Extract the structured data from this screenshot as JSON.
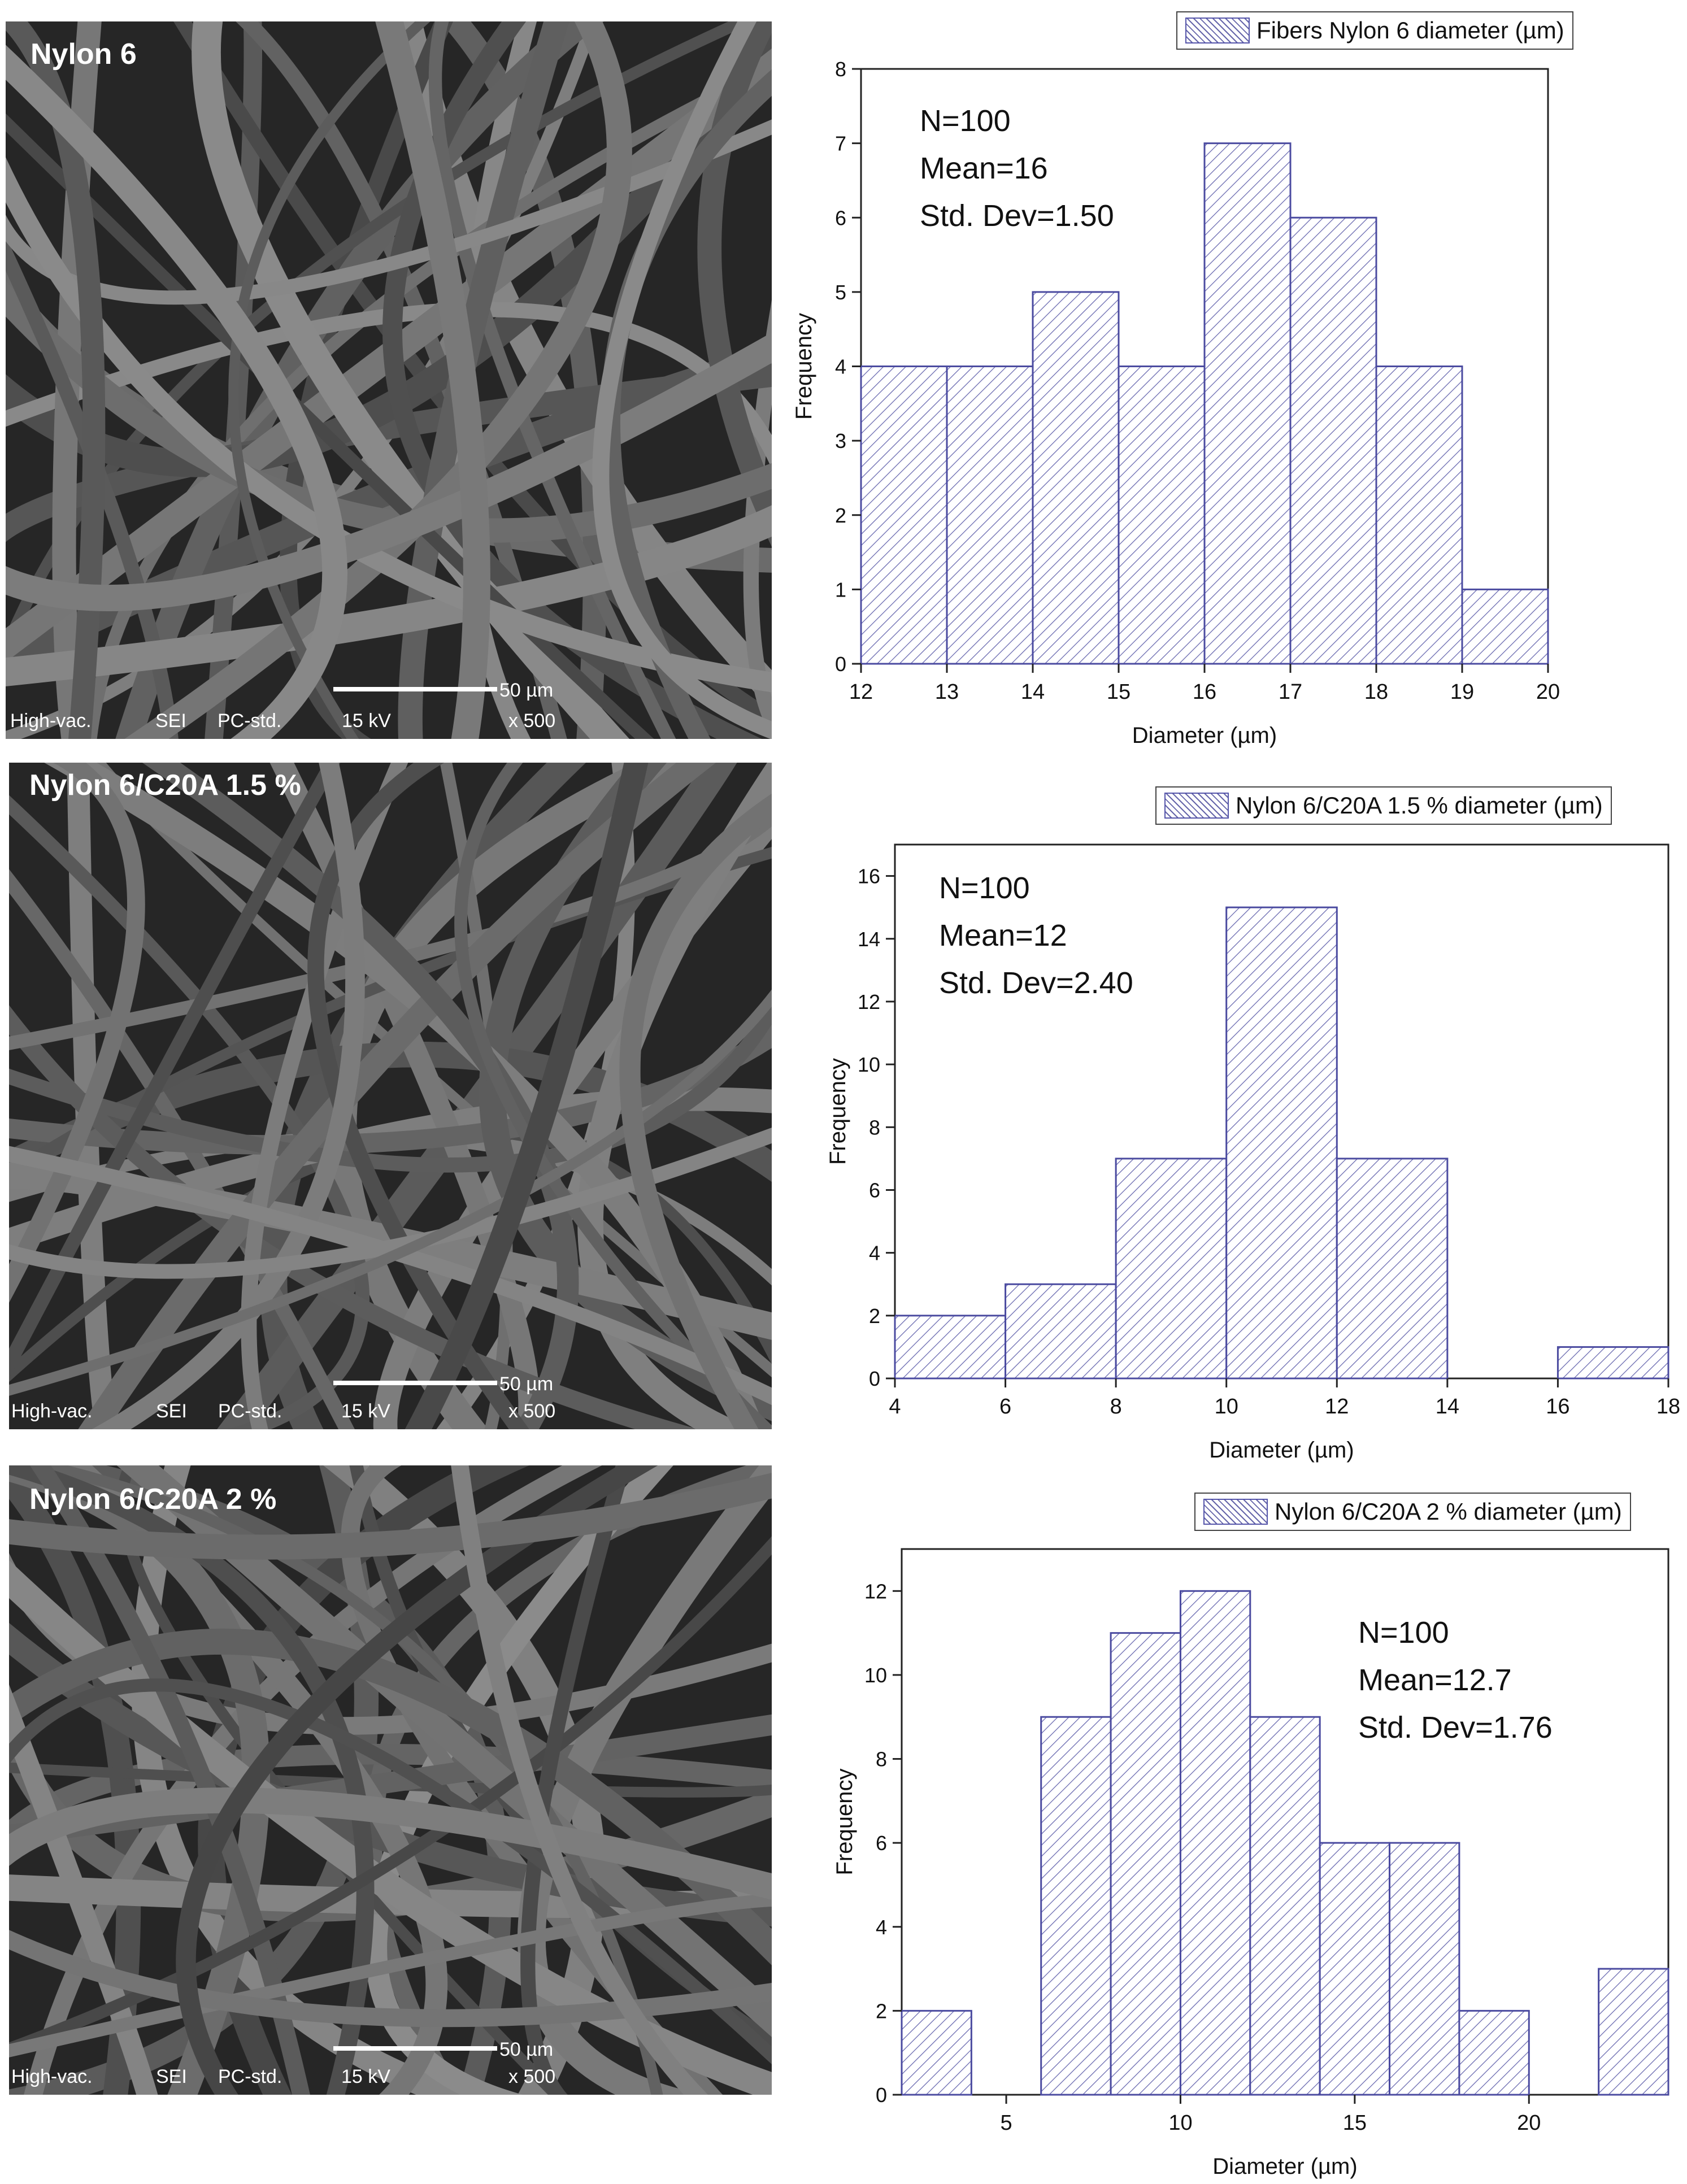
{
  "sem_panels": [
    {
      "title": "Nylon 6",
      "footer": [
        "High-vac.",
        "SEI",
        "PC-std.",
        "15 kV",
        "x 500"
      ],
      "scale_label": "50 µm"
    },
    {
      "title": "Nylon 6/C20A 1.5 %",
      "footer": [
        "High-vac.",
        "SEI",
        "PC-std.",
        "15 kV",
        "x 500"
      ],
      "scale_label": "50 µm"
    },
    {
      "title": "Nylon 6/C20A 2 %",
      "footer": [
        "High-vac.",
        "SEI",
        "PC-std.",
        "15 kV",
        "x 500"
      ],
      "scale_label": "50 µm"
    }
  ],
  "colors": {
    "bar_stroke": "#4b4ba0",
    "hatch": "#6a6ab0",
    "axis": "#222222"
  },
  "chart_data": [
    {
      "type": "bar",
      "legend": "Fibers Nylon 6 diameter (µm)",
      "stats": [
        "N=100",
        "Mean=16",
        "Std. Dev=1.50"
      ],
      "xlabel": "Diameter (µm)",
      "ylabel": "Frequency",
      "xlim": [
        12,
        20
      ],
      "ylim": [
        0,
        8
      ],
      "xticks": [
        12,
        13,
        14,
        15,
        16,
        17,
        18,
        19,
        20
      ],
      "yticks": [
        0,
        1,
        2,
        3,
        4,
        5,
        6,
        7,
        8
      ],
      "bins": [
        {
          "from": 12,
          "to": 13,
          "value": 4
        },
        {
          "from": 13,
          "to": 14,
          "value": 4
        },
        {
          "from": 14,
          "to": 15,
          "value": 5
        },
        {
          "from": 15,
          "to": 16,
          "value": 4
        },
        {
          "from": 16,
          "to": 17,
          "value": 7
        },
        {
          "from": 17,
          "to": 18,
          "value": 6
        },
        {
          "from": 18,
          "to": 19,
          "value": 4
        },
        {
          "from": 19,
          "to": 20,
          "value": 1
        }
      ]
    },
    {
      "type": "bar",
      "legend": "Nylon 6/C20A 1.5 % diameter (µm)",
      "stats": [
        "N=100",
        "Mean=12",
        "Std. Dev=2.40"
      ],
      "xlabel": "Diameter (µm)",
      "ylabel": "Frequency",
      "xlim": [
        4,
        18
      ],
      "ylim": [
        0,
        17
      ],
      "xticks": [
        4,
        6,
        8,
        10,
        12,
        14,
        16,
        18
      ],
      "yticks": [
        0,
        2,
        4,
        6,
        8,
        10,
        12,
        14,
        16
      ],
      "bins": [
        {
          "from": 4,
          "to": 6,
          "value": 2
        },
        {
          "from": 6,
          "to": 8,
          "value": 3
        },
        {
          "from": 8,
          "to": 10,
          "value": 7
        },
        {
          "from": 10,
          "to": 12,
          "value": 15
        },
        {
          "from": 12,
          "to": 14,
          "value": 7
        },
        {
          "from": 14,
          "to": 16,
          "value": 0
        },
        {
          "from": 16,
          "to": 18,
          "value": 1
        }
      ]
    },
    {
      "type": "bar",
      "legend": "Nylon 6/C20A 2 % diameter (µm)",
      "stats": [
        "N=100",
        "Mean=12.7",
        "Std. Dev=1.76"
      ],
      "xlabel": "Diameter (µm)",
      "ylabel": "Frequency",
      "xlim": [
        2,
        24
      ],
      "ylim": [
        0,
        13
      ],
      "xticks": [
        5,
        10,
        15,
        20
      ],
      "yticks": [
        0,
        2,
        4,
        6,
        8,
        10,
        12
      ],
      "bins": [
        {
          "from": 2,
          "to": 4,
          "value": 2
        },
        {
          "from": 4,
          "to": 6,
          "value": 0
        },
        {
          "from": 6,
          "to": 8,
          "value": 9
        },
        {
          "from": 8,
          "to": 10,
          "value": 11
        },
        {
          "from": 10,
          "to": 12,
          "value": 12
        },
        {
          "from": 12,
          "to": 14,
          "value": 9
        },
        {
          "from": 14,
          "to": 16,
          "value": 6
        },
        {
          "from": 16,
          "to": 18,
          "value": 6
        },
        {
          "from": 18,
          "to": 20,
          "value": 2
        },
        {
          "from": 20,
          "to": 22,
          "value": 0
        },
        {
          "from": 22,
          "to": 24,
          "value": 3
        }
      ]
    }
  ]
}
